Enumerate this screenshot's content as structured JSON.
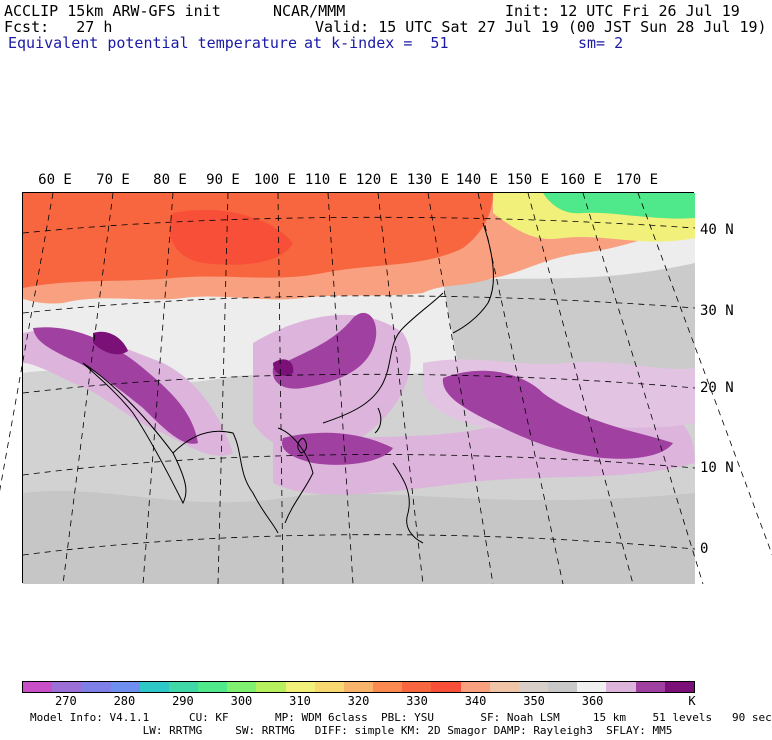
{
  "header": {
    "line1_left": "ACCLIP 15km ARW-GFS init",
    "line1_center": "NCAR/MMM",
    "line1_right": "Init: 12 UTC Fri 26 Jul 19",
    "line2_left": "Fcst:   27 h",
    "line2_right": "Valid: 15 UTC Sat 27 Jul 19 (00 JST Sun 28 Jul 19)",
    "field_name": "Equivalent potential temperature",
    "level": "at k-index =  51",
    "smoothing": "sm= 2"
  },
  "map": {
    "longitude_labels": [
      "60 E",
      "70 E",
      "80 E",
      "90 E",
      "100 E",
      "110 E",
      "120 E",
      "130 E",
      "140 E",
      "150 E",
      "160 E",
      "170 E"
    ],
    "latitude_labels": [
      "40 N",
      "30 N",
      "20 N",
      "10 N",
      "0"
    ]
  },
  "colorbar": {
    "colors": [
      "#c84fc8",
      "#9b6fd6",
      "#7f7fe8",
      "#6f8ff0",
      "#2ec8c8",
      "#3fd8a6",
      "#4fe88a",
      "#7ff070",
      "#b6f05e",
      "#f0f07a",
      "#f8d870",
      "#f8b46a",
      "#fa8a50",
      "#f86640",
      "#f85038",
      "#f8a080",
      "#f0c4a6",
      "#d8d0c8",
      "#c8c8c8",
      "#f0f0f0",
      "#dcb4dc",
      "#a040a0",
      "#7a1078"
    ],
    "labels": [
      "270",
      "280",
      "290",
      "300",
      "310",
      "320",
      "330",
      "340",
      "350",
      "360"
    ],
    "unit": "K"
  },
  "footer": {
    "line1": "Model Info: V4.1.1      CU: KF       MP: WDM 6class  PBL: YSU       SF: Noah LSM     15 km    51 levels   90 sec",
    "line2": "                 LW: RRTMG     SW: RRTMG   DIFF: simple KM: 2D Smagor DAMP: Rayleigh3  SFLAY: MM5"
  }
}
